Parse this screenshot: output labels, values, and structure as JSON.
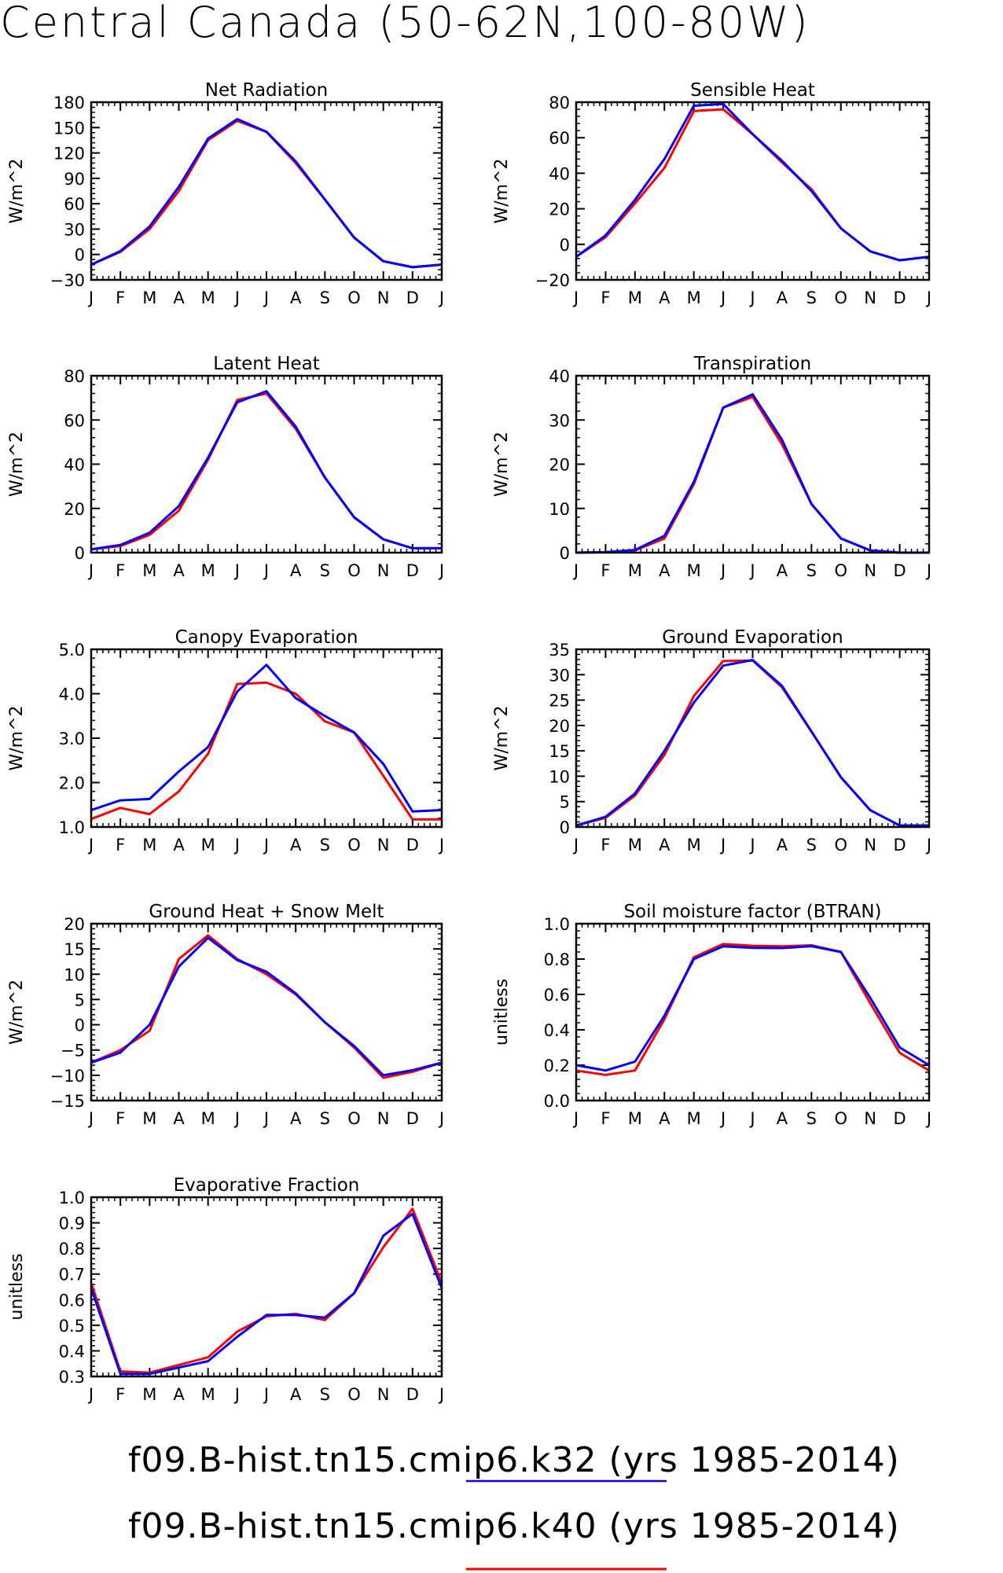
{
  "title": "Central Canada (50-62N,100-80W)",
  "legend": [
    {
      "label": "f09.B-hist.tn15.cmip6.k32 (yrs 1985-2014)",
      "color": "#0000ff"
    },
    {
      "label": "f09.B-hist.tn15.cmip6.k40 (yrs 1985-2014)",
      "color": "#ff0000"
    }
  ],
  "months": [
    "J",
    "F",
    "M",
    "A",
    "M",
    "J",
    "J",
    "A",
    "S",
    "O",
    "N",
    "D",
    "J"
  ],
  "chart_data": [
    {
      "type": "line",
      "title": "Net Radiation",
      "ylabel": "W/m^2",
      "ylim": [
        -30,
        180
      ],
      "yticks": [
        -30,
        0,
        30,
        60,
        90,
        120,
        150,
        180
      ],
      "ytick_labels": [
        "−30",
        "0",
        "30",
        "60",
        "90",
        "120",
        "150",
        "180"
      ],
      "categories": [
        "J",
        "F",
        "M",
        "A",
        "M",
        "J",
        "J",
        "A",
        "S",
        "O",
        "N",
        "D",
        "J"
      ],
      "series": [
        {
          "color": "#ff0000",
          "values": [
            -12,
            3,
            30,
            75,
            135,
            158,
            145,
            108,
            65,
            20,
            -8,
            -15,
            -12
          ]
        },
        {
          "color": "#0000ff",
          "values": [
            -12,
            4,
            33,
            80,
            137,
            160,
            145,
            110,
            65,
            20,
            -8,
            -15,
            -12
          ]
        }
      ]
    },
    {
      "type": "line",
      "title": "Sensible Heat",
      "ylabel": "W/m^2",
      "ylim": [
        -20,
        80
      ],
      "yticks": [
        -20,
        0,
        20,
        40,
        60,
        80
      ],
      "ytick_labels": [
        "−20",
        "0",
        "20",
        "40",
        "60",
        "80"
      ],
      "categories": [
        "J",
        "F",
        "M",
        "A",
        "M",
        "J",
        "J",
        "A",
        "S",
        "O",
        "N",
        "D",
        "J"
      ],
      "series": [
        {
          "color": "#ff0000",
          "values": [
            -7,
            4,
            23,
            43,
            75,
            76,
            62,
            46,
            31,
            9,
            -4,
            -9,
            -7
          ]
        },
        {
          "color": "#0000ff",
          "values": [
            -7,
            5,
            25,
            48,
            78,
            79,
            62,
            47,
            30,
            9,
            -4,
            -9,
            -7
          ]
        }
      ]
    },
    {
      "type": "line",
      "title": "Latent Heat",
      "ylabel": "W/m^2",
      "ylim": [
        0,
        80
      ],
      "yticks": [
        0,
        20,
        40,
        60,
        80
      ],
      "ytick_labels": [
        "0",
        "20",
        "40",
        "60",
        "80"
      ],
      "categories": [
        "J",
        "F",
        "M",
        "A",
        "M",
        "J",
        "J",
        "A",
        "S",
        "O",
        "N",
        "D",
        "J"
      ],
      "series": [
        {
          "color": "#ff0000",
          "values": [
            1.5,
            3,
            8,
            19,
            42,
            69,
            72,
            56,
            34,
            16,
            6,
            2,
            2
          ]
        },
        {
          "color": "#0000ff",
          "values": [
            1.5,
            3.5,
            9,
            21,
            43,
            68,
            73,
            57,
            34,
            16,
            6,
            2,
            2
          ]
        }
      ]
    },
    {
      "type": "line",
      "title": "Transpiration",
      "ylabel": "W/m^2",
      "ylim": [
        0,
        40
      ],
      "yticks": [
        0,
        10,
        20,
        30,
        40
      ],
      "ytick_labels": [
        "0",
        "10",
        "20",
        "30",
        "40"
      ],
      "categories": [
        "J",
        "F",
        "M",
        "A",
        "M",
        "J",
        "J",
        "A",
        "S",
        "O",
        "N",
        "D",
        "J"
      ],
      "series": [
        {
          "color": "#ff0000",
          "values": [
            0,
            0.1,
            0.5,
            3.2,
            15.5,
            32.8,
            35.2,
            24.5,
            11,
            3.2,
            0.5,
            0,
            0
          ]
        },
        {
          "color": "#0000ff",
          "values": [
            0,
            0.1,
            0.6,
            3.8,
            16,
            32.8,
            35.8,
            25.5,
            11,
            3.2,
            0.5,
            0,
            0
          ]
        }
      ]
    },
    {
      "type": "line",
      "title": "Canopy Evaporation",
      "ylabel": "W/m^2",
      "ylim": [
        1.0,
        5.0
      ],
      "yticks": [
        1.0,
        2.0,
        3.0,
        4.0,
        5.0
      ],
      "ytick_labels": [
        "1.0",
        "2.0",
        "3.0",
        "4.0",
        "5.0"
      ],
      "categories": [
        "J",
        "F",
        "M",
        "A",
        "M",
        "J",
        "J",
        "A",
        "S",
        "O",
        "N",
        "D",
        "J"
      ],
      "series": [
        {
          "color": "#ff0000",
          "values": [
            1.18,
            1.43,
            1.29,
            1.8,
            2.65,
            4.22,
            4.25,
            4.0,
            3.38,
            3.13,
            2.15,
            1.17,
            1.17
          ]
        },
        {
          "color": "#0000ff",
          "values": [
            1.38,
            1.6,
            1.63,
            2.25,
            2.8,
            4.05,
            4.65,
            3.9,
            3.5,
            3.13,
            2.42,
            1.35,
            1.38
          ]
        }
      ]
    },
    {
      "type": "line",
      "title": "Ground Evaporation",
      "ylabel": "W/m^2",
      "ylim": [
        0,
        35
      ],
      "yticks": [
        0,
        5,
        10,
        15,
        20,
        25,
        30,
        35
      ],
      "ytick_labels": [
        "0",
        "5",
        "10",
        "15",
        "20",
        "25",
        "30",
        "35"
      ],
      "categories": [
        "J",
        "F",
        "M",
        "A",
        "M",
        "J",
        "J",
        "A",
        "S",
        "O",
        "N",
        "D",
        "J"
      ],
      "series": [
        {
          "color": "#ff0000",
          "values": [
            0.3,
            1.8,
            6.2,
            14.2,
            25.8,
            32.7,
            32.8,
            27.5,
            18.8,
            9.8,
            3.3,
            0.3,
            0.3
          ]
        },
        {
          "color": "#0000ff",
          "values": [
            0.3,
            2,
            6.6,
            15,
            24.5,
            31.8,
            32.9,
            27.8,
            18.8,
            9.8,
            3.3,
            0.3,
            0.3
          ]
        }
      ]
    },
    {
      "type": "line",
      "title": "Ground Heat + Snow Melt",
      "ylabel": "W/m^2",
      "ylim": [
        -15,
        20
      ],
      "yticks": [
        -15,
        -10,
        -5,
        0,
        5,
        10,
        15,
        20
      ],
      "ytick_labels": [
        "−15",
        "−10",
        "−5",
        "0",
        "5",
        "10",
        "15",
        "20"
      ],
      "categories": [
        "J",
        "F",
        "M",
        "A",
        "M",
        "J",
        "J",
        "A",
        "S",
        "O",
        "N",
        "D",
        "J"
      ],
      "series": [
        {
          "color": "#ff0000",
          "values": [
            -7.5,
            -5,
            -1.2,
            13,
            17.7,
            13,
            10,
            6,
            0.5,
            -4.5,
            -10.5,
            -9.3,
            -7.5
          ]
        },
        {
          "color": "#0000ff",
          "values": [
            -7.5,
            -5.5,
            0,
            11.5,
            17.2,
            12.8,
            10.5,
            6.2,
            0.5,
            -4.2,
            -10,
            -9,
            -7.5
          ]
        }
      ]
    },
    {
      "type": "line",
      "title": "Soil moisture factor (BTRAN)",
      "ylabel": "unitless",
      "ylim": [
        0.0,
        1.0
      ],
      "yticks": [
        0.0,
        0.2,
        0.4,
        0.6,
        0.8,
        1.0
      ],
      "ytick_labels": [
        "0.0",
        "0.2",
        "0.4",
        "0.6",
        "0.8",
        "1.0"
      ],
      "categories": [
        "J",
        "F",
        "M",
        "A",
        "M",
        "J",
        "J",
        "A",
        "S",
        "O",
        "N",
        "D",
        "J"
      ],
      "series": [
        {
          "color": "#ff0000",
          "values": [
            0.17,
            0.145,
            0.17,
            0.46,
            0.81,
            0.885,
            0.875,
            0.872,
            0.878,
            0.84,
            0.55,
            0.27,
            0.17
          ]
        },
        {
          "color": "#0000ff",
          "values": [
            0.2,
            0.17,
            0.22,
            0.48,
            0.8,
            0.872,
            0.863,
            0.862,
            0.873,
            0.84,
            0.58,
            0.3,
            0.2
          ]
        }
      ]
    },
    {
      "type": "line",
      "title": "Evaporative Fraction",
      "ylabel": "unitless",
      "ylim": [
        0.3,
        1.0
      ],
      "yticks": [
        0.3,
        0.4,
        0.5,
        0.6,
        0.7,
        0.8,
        0.9,
        1.0
      ],
      "ytick_labels": [
        "0.3",
        "0.4",
        "0.5",
        "0.6",
        "0.7",
        "0.8",
        "0.9",
        "1.0"
      ],
      "categories": [
        "J",
        "F",
        "M",
        "A",
        "M",
        "J",
        "J",
        "A",
        "S",
        "O",
        "N",
        "D",
        "J"
      ],
      "series": [
        {
          "color": "#ff0000",
          "values": [
            0.665,
            0.32,
            0.315,
            0.345,
            0.375,
            0.475,
            0.535,
            0.545,
            0.52,
            0.625,
            0.805,
            0.955,
            0.665
          ]
        },
        {
          "color": "#0000ff",
          "values": [
            0.645,
            0.31,
            0.31,
            0.335,
            0.36,
            0.455,
            0.54,
            0.54,
            0.53,
            0.625,
            0.85,
            0.935,
            0.645
          ]
        }
      ]
    }
  ]
}
